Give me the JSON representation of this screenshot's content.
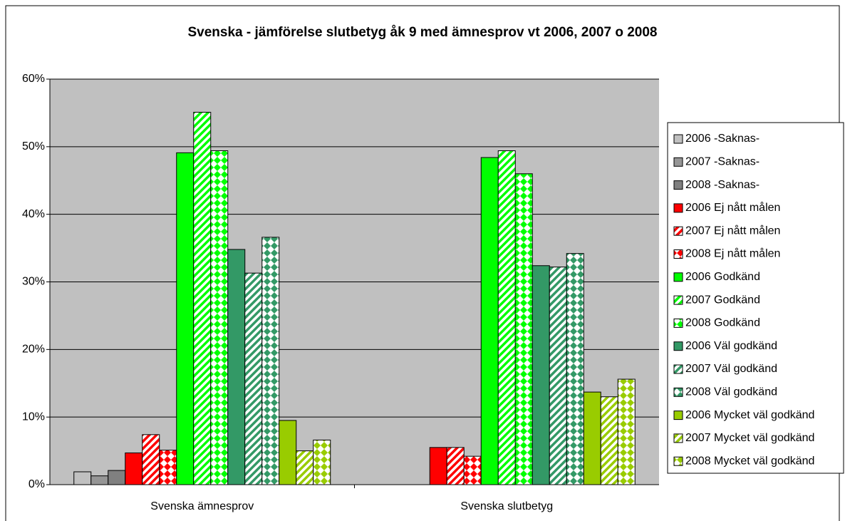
{
  "chart_data": {
    "type": "bar",
    "title": "Svenska - jämförelse slutbetyg åk 9 med ämnesprov vt 2006, 2007 o 2008",
    "categories": [
      "Svenska ämnesprov",
      "Svenska slutbetyg"
    ],
    "ylim": [
      0,
      60
    ],
    "yticks": [
      {
        "value": 0,
        "label": "0%"
      },
      {
        "value": 10,
        "label": "10%"
      },
      {
        "value": 20,
        "label": "20%"
      },
      {
        "value": 30,
        "label": "30%"
      },
      {
        "value": 40,
        "label": "40%"
      },
      {
        "value": 50,
        "label": "50%"
      },
      {
        "value": 60,
        "label": "60%"
      }
    ],
    "grid": true,
    "legend": "right",
    "series": [
      {
        "name": "2006 -Saknas-",
        "color": "#c0c0c0",
        "pattern": "solid",
        "values": [
          1.9,
          0
        ]
      },
      {
        "name": "2007 -Saknas-",
        "color": "#969696",
        "pattern": "solid",
        "values": [
          1.3,
          0
        ]
      },
      {
        "name": "2008 -Saknas-",
        "color": "#808080",
        "pattern": "solid",
        "values": [
          2.1,
          0
        ]
      },
      {
        "name": "2006 Ej nått målen",
        "color": "#ff0000",
        "pattern": "solid",
        "values": [
          4.7,
          5.5
        ]
      },
      {
        "name": "2007 Ej nått målen",
        "color": "#ff0000",
        "pattern": "diagonal",
        "values": [
          7.4,
          5.5
        ]
      },
      {
        "name": "2008 Ej nått målen",
        "color": "#ff0000",
        "pattern": "checker",
        "values": [
          5.1,
          4.2
        ]
      },
      {
        "name": "2006 Godkänd",
        "color": "#00ff00",
        "pattern": "solid",
        "values": [
          49.1,
          48.4
        ]
      },
      {
        "name": "2007 Godkänd",
        "color": "#00ff00",
        "pattern": "diagonal",
        "values": [
          55.1,
          49.4
        ]
      },
      {
        "name": "2008 Godkänd",
        "color": "#00ff00",
        "pattern": "checker",
        "values": [
          49.4,
          46.0
        ]
      },
      {
        "name": "2006 Väl godkänd",
        "color": "#339966",
        "pattern": "solid",
        "values": [
          34.8,
          32.4
        ]
      },
      {
        "name": "2007 Väl godkänd",
        "color": "#339966",
        "pattern": "diagonal",
        "values": [
          31.3,
          32.2
        ]
      },
      {
        "name": "2008 Väl godkänd",
        "color": "#339966",
        "pattern": "checker",
        "values": [
          36.6,
          34.2
        ]
      },
      {
        "name": "2006 Mycket väl godkänd",
        "color": "#99cc00",
        "pattern": "solid",
        "values": [
          9.5,
          13.7
        ]
      },
      {
        "name": "2007 Mycket väl godkänd",
        "color": "#99cc00",
        "pattern": "diagonal",
        "values": [
          5.0,
          13.0
        ]
      },
      {
        "name": "2008 Mycket väl godkänd",
        "color": "#99cc00",
        "pattern": "checker",
        "values": [
          6.6,
          15.6
        ]
      }
    ]
  }
}
